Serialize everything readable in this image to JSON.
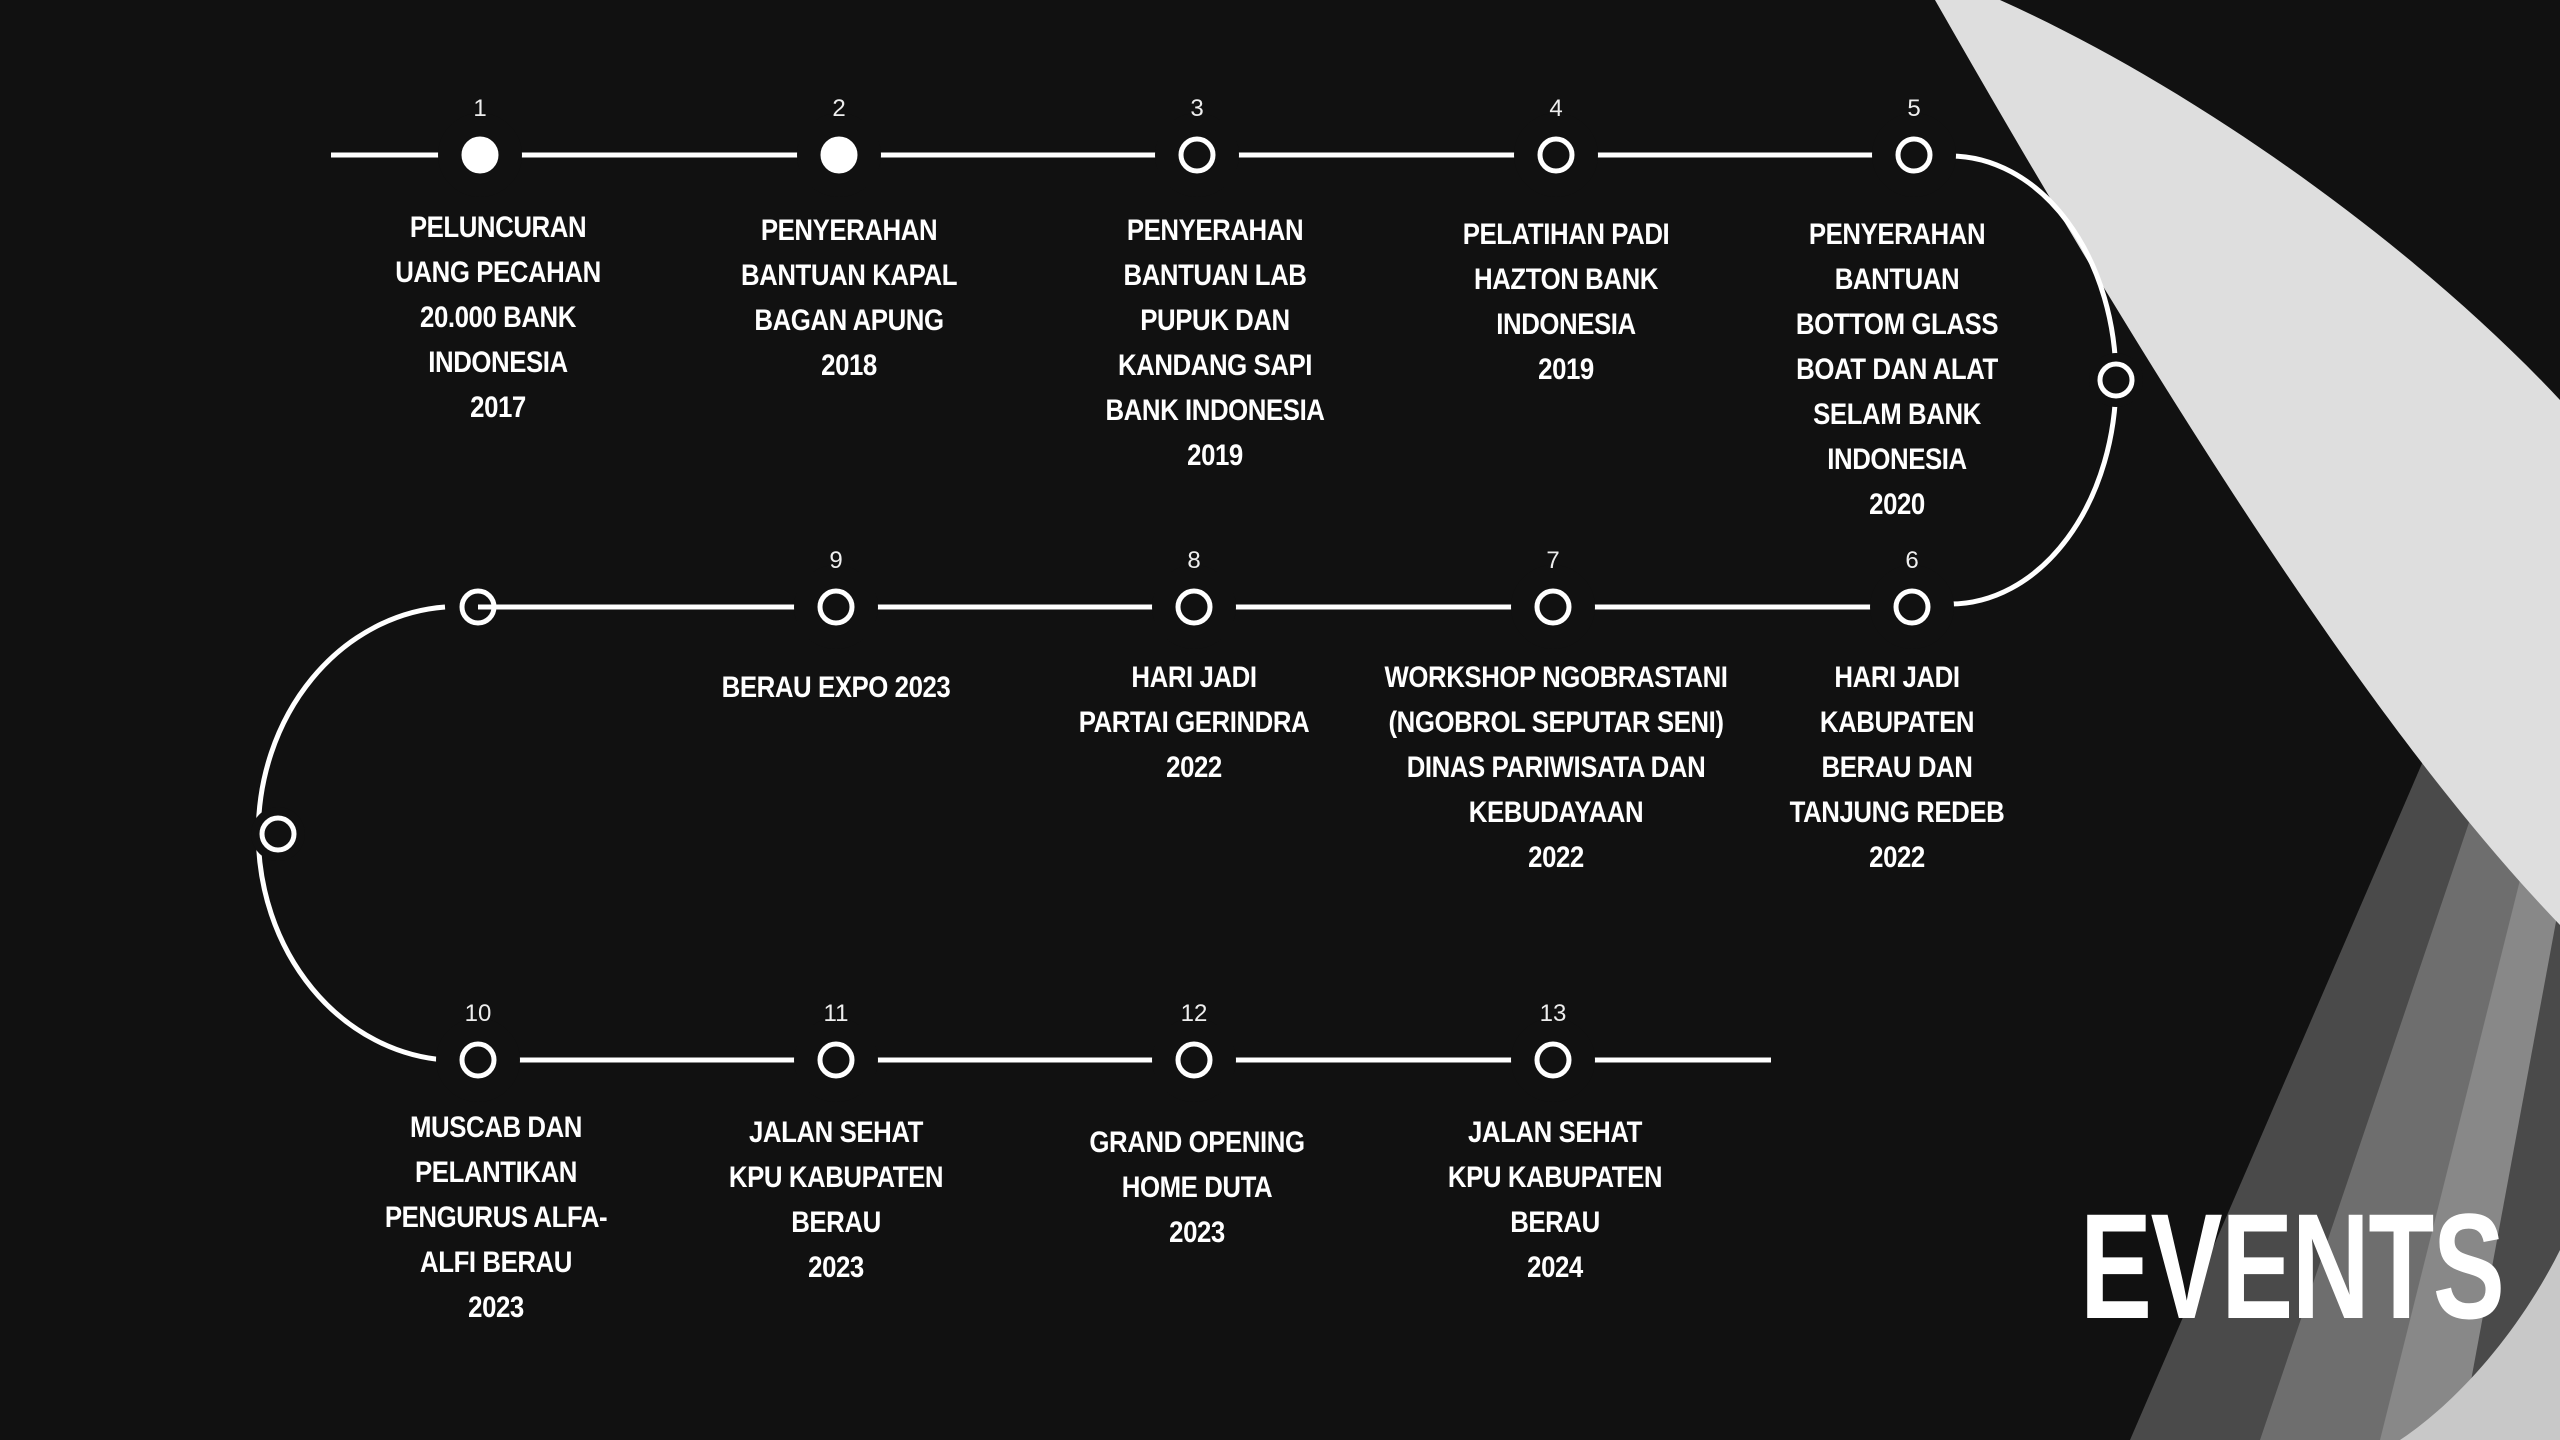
{
  "title": "EVENTS",
  "colors": {
    "background": "#111111",
    "line": "#ffffff",
    "band": "#dedede"
  },
  "events": [
    {
      "number": "1",
      "text": "PELUNCURAN\nUANG PECAHAN\n20.000 BANK\nINDONESIA\n2017",
      "filled": true
    },
    {
      "number": "2",
      "text": "PENYERAHAN\nBANTUAN KAPAL\nBAGAN APUNG\n2018",
      "filled": true
    },
    {
      "number": "3",
      "text": "PENYERAHAN\nBANTUAN LAB\nPUPUK DAN\nKANDANG SAPI\nBANK INDONESIA\n2019",
      "filled": false
    },
    {
      "number": "4",
      "text": "PELATIHAN PADI\nHAZTON BANK\nINDONESIA\n2019",
      "filled": false
    },
    {
      "number": "5",
      "text": "PENYERAHAN\nBANTUAN\nBOTTOM GLASS\nBOAT DAN ALAT\nSELAM BANK\nINDONESIA\n2020",
      "filled": false
    },
    {
      "number": "6",
      "text": "HARI JADI\nKABUPATEN\nBERAU DAN\nTANJUNG REDEB\n2022",
      "filled": false
    },
    {
      "number": "7",
      "text": "WORKSHOP NGOBRASTANI\n(NGOBROL SEPUTAR SENI)\nDINAS PARIWISATA DAN\nKEBUDAYAAN\n2022",
      "filled": false
    },
    {
      "number": "8",
      "text": "HARI JADI\nPARTAI GERINDRA\n2022",
      "filled": false
    },
    {
      "number": "9",
      "text": "BERAU EXPO 2023",
      "filled": false
    },
    {
      "number": "10",
      "text": "MUSCAB DAN\nPELANTIKAN\nPENGURUS ALFA-\nALFI BERAU\n2023",
      "filled": false
    },
    {
      "number": "11",
      "text": "JALAN SEHAT\nKPU KABUPATEN\nBERAU\n2023",
      "filled": false
    },
    {
      "number": "12",
      "text": "GRAND OPENING\nHOME DUTA\n2023",
      "filled": false
    },
    {
      "number": "13",
      "text": "JALAN SEHAT\nKPU KABUPATEN\nBERAU\n2024",
      "filled": false
    }
  ]
}
